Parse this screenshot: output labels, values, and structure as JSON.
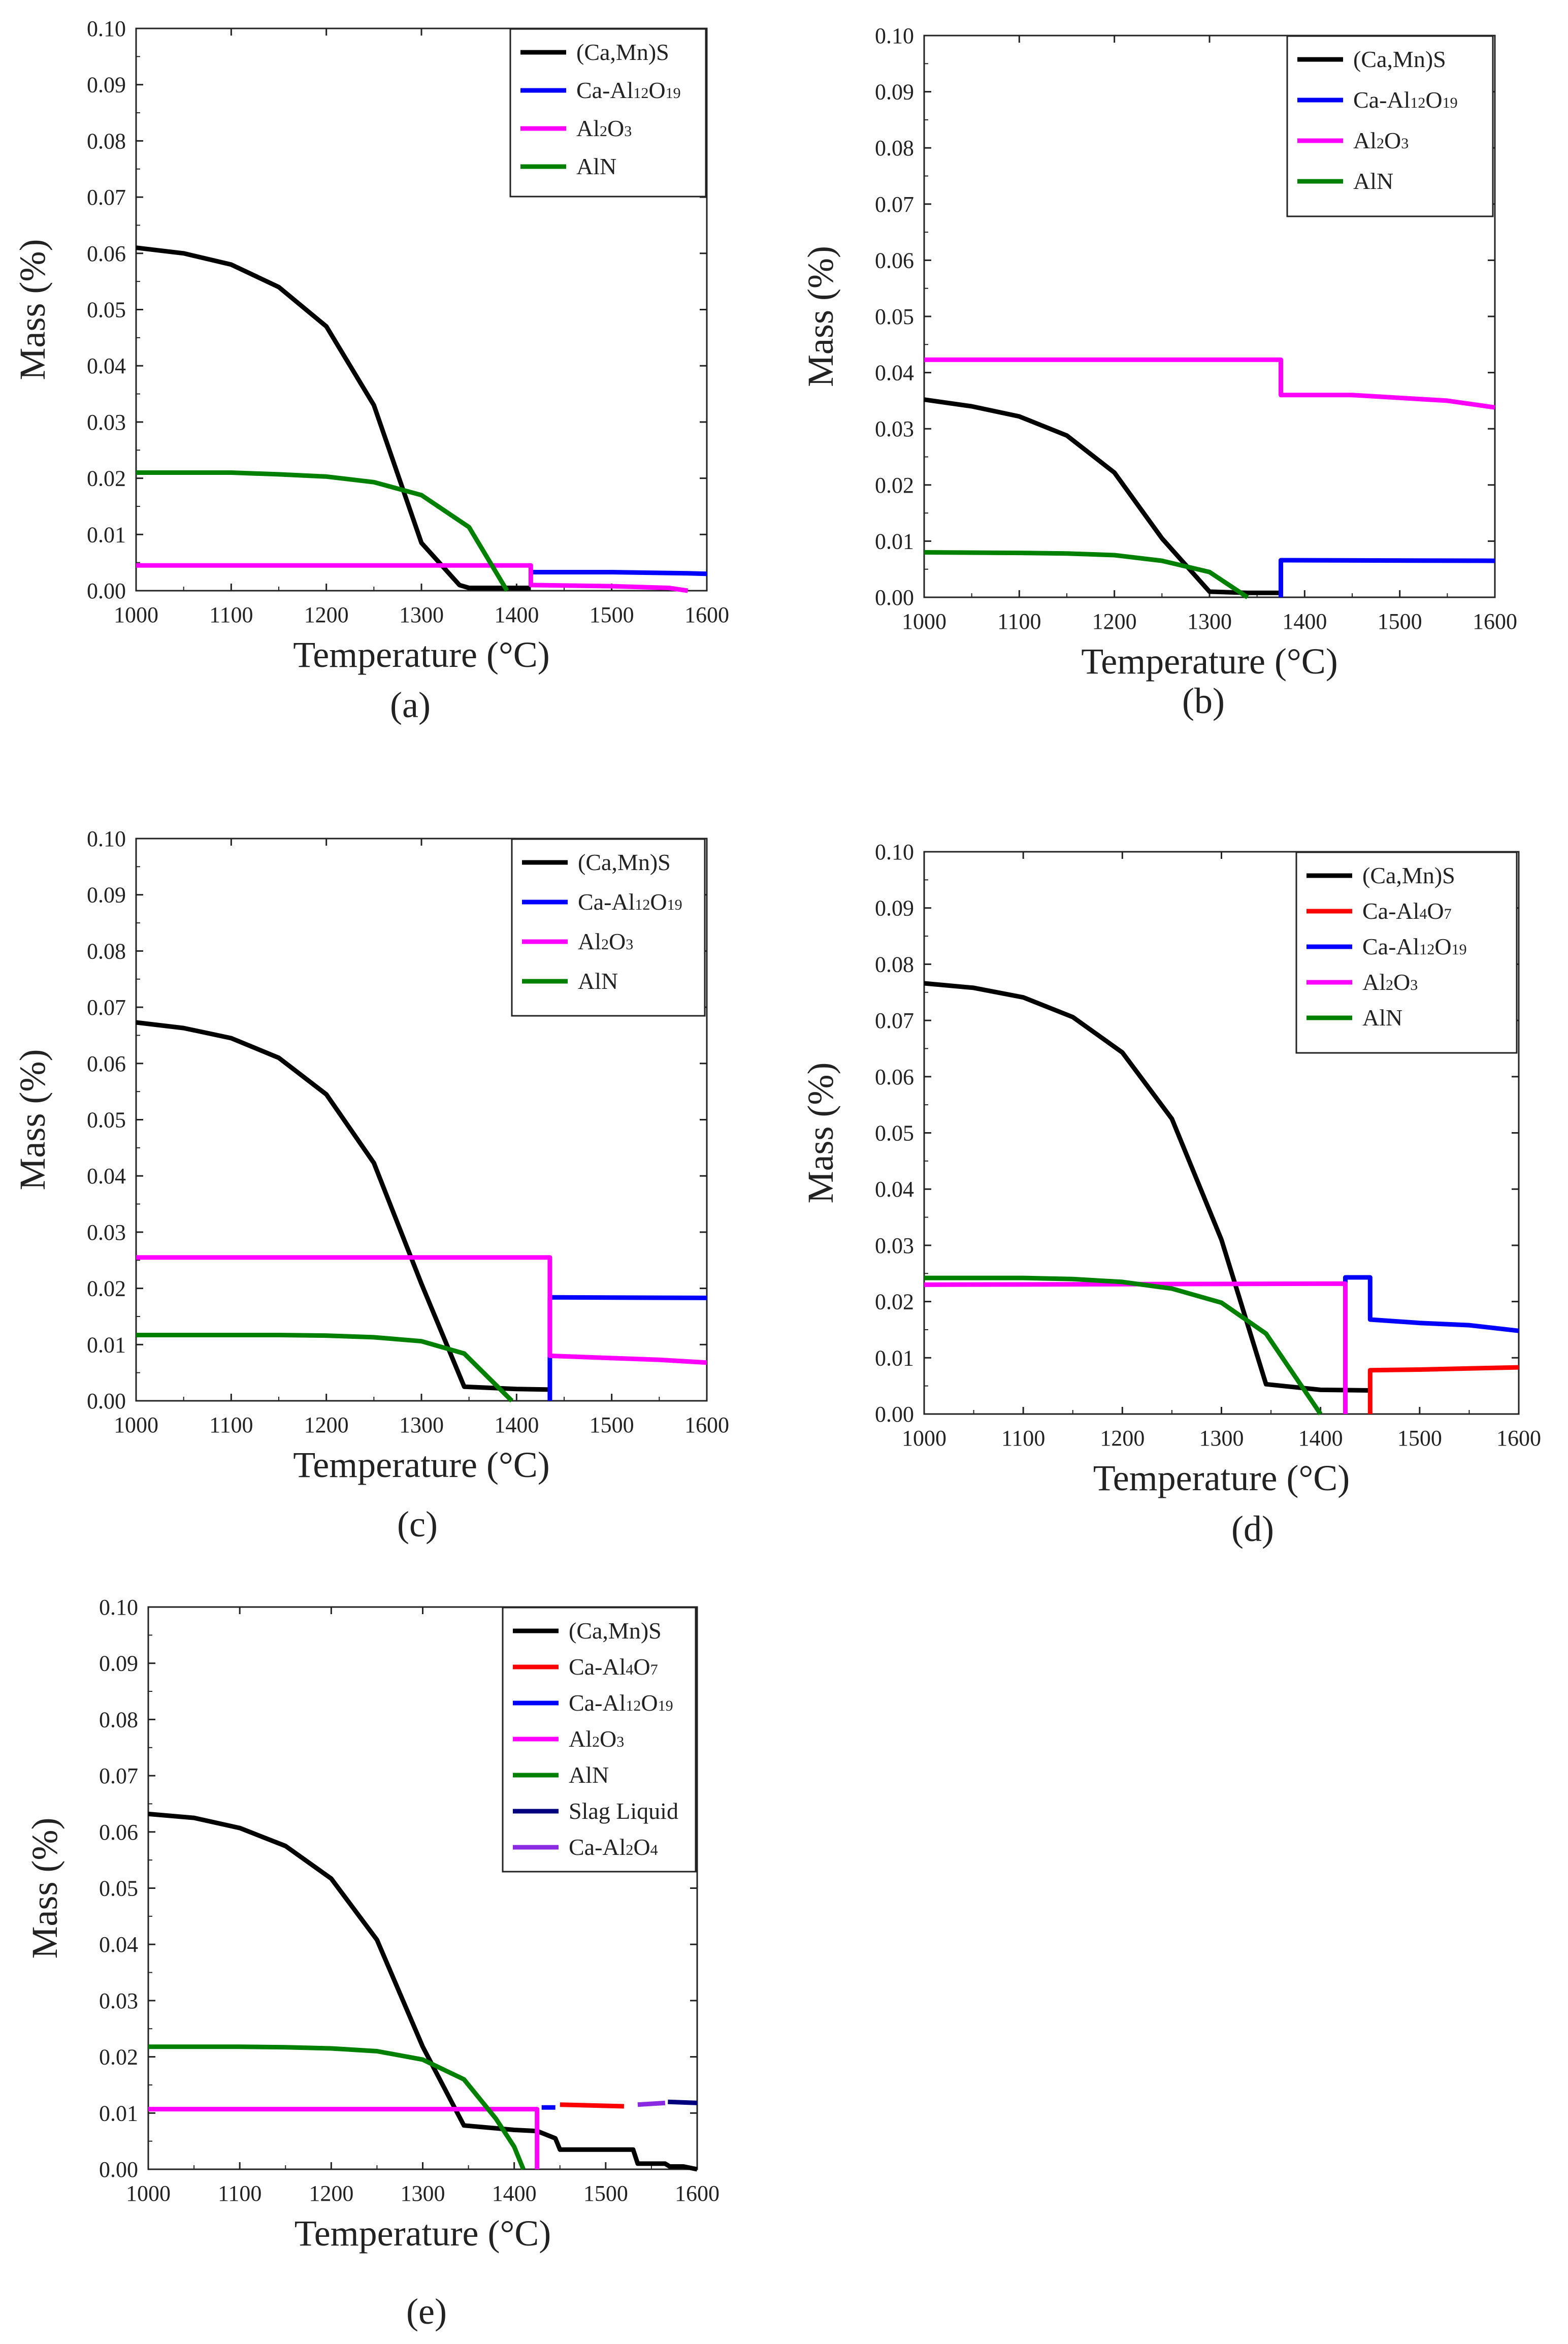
{
  "chart_data": [
    {
      "type": "line",
      "panel_label": "(a)",
      "xlabel": "Temperature (°C)",
      "ylabel": "Mass (%)",
      "xlim": [
        1000,
        1600
      ],
      "ylim": [
        0,
        0.1
      ],
      "x_ticks": [
        "1000",
        "1100",
        "1200",
        "1300",
        "1400",
        "1500",
        "1600"
      ],
      "y_ticks": [
        "0.00",
        "0.01",
        "0.02",
        "0.03",
        "0.04",
        "0.05",
        "0.06",
        "0.07",
        "0.08",
        "0.09",
        "0.10"
      ],
      "legend": [
        "(Ca,Mn)S",
        "Ca-Al12O19",
        "Al2O3",
        "AlN"
      ],
      "series": [
        {
          "name": "(Ca,Mn)S",
          "color": "#000000",
          "points": [
            [
              1000,
              0.061
            ],
            [
              1050,
              0.06
            ],
            [
              1100,
              0.058
            ],
            [
              1150,
              0.054
            ],
            [
              1200,
              0.047
            ],
            [
              1250,
              0.033
            ],
            [
              1300,
              0.0085
            ],
            [
              1340,
              0.001
            ],
            [
              1350,
              0.0005
            ],
            [
              1415,
              0.0005
            ]
          ]
        },
        {
          "name": "Ca-Al12O19",
          "color": "#0000ff",
          "points": [
            [
              1415,
              0.0033
            ],
            [
              1500,
              0.0033
            ],
            [
              1580,
              0.0031
            ],
            [
              1600,
              0.003
            ]
          ]
        },
        {
          "name": "Al2O3",
          "color": "#ff00ff",
          "points": [
            [
              1000,
              0.0045
            ],
            [
              1415,
              0.0045
            ],
            [
              1415,
              0.001
            ],
            [
              1500,
              0.0008
            ],
            [
              1560,
              0.0005
            ],
            [
              1580,
              0.0
            ]
          ]
        },
        {
          "name": "AlN",
          "color": "#008000",
          "points": [
            [
              1000,
              0.021
            ],
            [
              1100,
              0.021
            ],
            [
              1150,
              0.0207
            ],
            [
              1200,
              0.0203
            ],
            [
              1250,
              0.0193
            ],
            [
              1300,
              0.017
            ],
            [
              1350,
              0.0113
            ],
            [
              1390,
              0.0
            ]
          ]
        }
      ]
    },
    {
      "type": "line",
      "panel_label": "(b)",
      "xlabel": "Temperature (°C)",
      "ylabel": "Mass (%)",
      "xlim": [
        1000,
        1600
      ],
      "ylim": [
        0,
        0.1
      ],
      "x_ticks": [
        "1000",
        "1100",
        "1200",
        "1300",
        "1400",
        "1500",
        "1600"
      ],
      "y_ticks": [
        "0.00",
        "0.01",
        "0.02",
        "0.03",
        "0.04",
        "0.05",
        "0.06",
        "0.07",
        "0.08",
        "0.09",
        "0.10"
      ],
      "legend": [
        "(Ca,Mn)S",
        "Ca-Al12O19",
        "Al2O3",
        "AlN"
      ],
      "series": [
        {
          "name": "(Ca,Mn)S",
          "color": "#000000",
          "points": [
            [
              1000,
              0.0352
            ],
            [
              1050,
              0.034
            ],
            [
              1100,
              0.0322
            ],
            [
              1150,
              0.0288
            ],
            [
              1200,
              0.0222
            ],
            [
              1250,
              0.0105
            ],
            [
              1300,
              0.001
            ],
            [
              1340,
              0.0008
            ],
            [
              1375,
              0.0008
            ]
          ]
        },
        {
          "name": "Ca-Al12O19",
          "color": "#0000ff",
          "points": [
            [
              1375,
              0.0
            ],
            [
              1375,
              0.0066
            ],
            [
              1600,
              0.0065
            ]
          ]
        },
        {
          "name": "Al2O3",
          "color": "#ff00ff",
          "points": [
            [
              1000,
              0.0423
            ],
            [
              1375,
              0.0423
            ],
            [
              1375,
              0.036
            ],
            [
              1450,
              0.036
            ],
            [
              1550,
              0.035
            ],
            [
              1600,
              0.0338
            ]
          ]
        },
        {
          "name": "AlN",
          "color": "#008000",
          "points": [
            [
              1000,
              0.008
            ],
            [
              1100,
              0.0079
            ],
            [
              1150,
              0.0078
            ],
            [
              1200,
              0.0075
            ],
            [
              1250,
              0.0065
            ],
            [
              1280,
              0.0053
            ],
            [
              1300,
              0.0045
            ],
            [
              1340,
              0.0
            ]
          ]
        }
      ]
    },
    {
      "type": "line",
      "panel_label": "(c)",
      "xlabel": "Temperature (°C)",
      "ylabel": "Mass (%)",
      "xlim": [
        1000,
        1600
      ],
      "ylim": [
        0,
        0.1
      ],
      "x_ticks": [
        "1000",
        "1100",
        "1200",
        "1300",
        "1400",
        "1500",
        "1600"
      ],
      "y_ticks": [
        "0.00",
        "0.01",
        "0.02",
        "0.03",
        "0.04",
        "0.05",
        "0.06",
        "0.07",
        "0.08",
        "0.09",
        "0.10"
      ],
      "legend": [
        "(Ca,Mn)S",
        "Ca-Al12O19",
        "Al2O3",
        "AlN"
      ],
      "series": [
        {
          "name": "(Ca,Mn)S",
          "color": "#000000",
          "points": [
            [
              1000,
              0.0673
            ],
            [
              1050,
              0.0663
            ],
            [
              1100,
              0.0645
            ],
            [
              1150,
              0.061
            ],
            [
              1200,
              0.0545
            ],
            [
              1250,
              0.0423
            ],
            [
              1300,
              0.0208
            ],
            [
              1345,
              0.0025
            ],
            [
              1400,
              0.0021
            ],
            [
              1435,
              0.002
            ]
          ]
        },
        {
          "name": "Ca-Al12O19",
          "color": "#0000ff",
          "points": [
            [
              1435,
              0.0
            ],
            [
              1435,
              0.0184
            ],
            [
              1600,
              0.0183
            ]
          ]
        },
        {
          "name": "Al2O3",
          "color": "#ff00ff",
          "points": [
            [
              1000,
              0.0255
            ],
            [
              1435,
              0.0255
            ],
            [
              1435,
              0.008
            ],
            [
              1500,
              0.0076
            ],
            [
              1550,
              0.0073
            ],
            [
              1600,
              0.0068
            ]
          ]
        },
        {
          "name": "AlN",
          "color": "#008000",
          "points": [
            [
              1000,
              0.0117
            ],
            [
              1100,
              0.0117
            ],
            [
              1150,
              0.0117
            ],
            [
              1200,
              0.0116
            ],
            [
              1250,
              0.0113
            ],
            [
              1300,
              0.0106
            ],
            [
              1345,
              0.0084
            ],
            [
              1395,
              0.0
            ]
          ]
        }
      ]
    },
    {
      "type": "line",
      "panel_label": "(d)",
      "xlabel": "Temperature (°C)",
      "ylabel": "Mass (%)",
      "xlim": [
        1000,
        1600
      ],
      "ylim": [
        0,
        0.1
      ],
      "x_ticks": [
        "1000",
        "1100",
        "1200",
        "1300",
        "1400",
        "1500",
        "1600"
      ],
      "y_ticks": [
        "0.00",
        "0.01",
        "0.02",
        "0.03",
        "0.04",
        "0.05",
        "0.06",
        "0.07",
        "0.08",
        "0.09",
        "0.10"
      ],
      "legend": [
        "(Ca,Mn)S",
        "Ca-Al4O7",
        "Ca-Al12O19",
        "Al2O3",
        "AlN"
      ],
      "series": [
        {
          "name": "(Ca,Mn)S",
          "color": "#000000",
          "points": [
            [
              1000,
              0.0766
            ],
            [
              1050,
              0.0758
            ],
            [
              1100,
              0.0741
            ],
            [
              1150,
              0.0706
            ],
            [
              1200,
              0.0643
            ],
            [
              1250,
              0.0525
            ],
            [
              1300,
              0.031
            ],
            [
              1345,
              0.0053
            ],
            [
              1400,
              0.0043
            ],
            [
              1450,
              0.0042
            ]
          ]
        },
        {
          "name": "Ca-Al4O7",
          "color": "#ff0000",
          "points": [
            [
              1450,
              0.0
            ],
            [
              1450,
              0.0078
            ],
            [
              1500,
              0.0079
            ],
            [
              1550,
              0.0081
            ],
            [
              1600,
              0.0083
            ]
          ]
        },
        {
          "name": "Ca-Al12O19",
          "color": "#0000ff",
          "points": [
            [
              1425,
              0.0
            ],
            [
              1425,
              0.0243
            ],
            [
              1450,
              0.0243
            ],
            [
              1450,
              0.0168
            ],
            [
              1500,
              0.0162
            ],
            [
              1550,
              0.0158
            ],
            [
              1600,
              0.0148
            ]
          ]
        },
        {
          "name": "Al2O3",
          "color": "#ff00ff",
          "points": [
            [
              1000,
              0.023
            ],
            [
              1425,
              0.0232
            ],
            [
              1425,
              0.0
            ]
          ]
        },
        {
          "name": "AlN",
          "color": "#008000",
          "points": [
            [
              1000,
              0.0242
            ],
            [
              1100,
              0.0242
            ],
            [
              1150,
              0.024
            ],
            [
              1200,
              0.0235
            ],
            [
              1250,
              0.0223
            ],
            [
              1300,
              0.0198
            ],
            [
              1345,
              0.0143
            ],
            [
              1400,
              0.0
            ]
          ]
        }
      ]
    },
    {
      "type": "line",
      "panel_label": "(e)",
      "xlabel": "Temperature (°C)",
      "ylabel": "Mass (%)",
      "xlim": [
        1000,
        1600
      ],
      "ylim": [
        0,
        0.1
      ],
      "x_ticks": [
        "1000",
        "1100",
        "1200",
        "1300",
        "1400",
        "1500",
        "1600"
      ],
      "y_ticks": [
        "0.00",
        "0.01",
        "0.02",
        "0.03",
        "0.04",
        "0.05",
        "0.06",
        "0.07",
        "0.08",
        "0.09",
        "0.10"
      ],
      "legend": [
        "(Ca,Mn)S",
        "Ca-Al4O7",
        "Ca-Al12O19",
        "Al2O3",
        "AlN",
        "Slag Liquid",
        "Ca-Al2O4"
      ],
      "series": [
        {
          "name": "(Ca,Mn)S",
          "color": "#000000",
          "points": [
            [
              1000,
              0.0632
            ],
            [
              1050,
              0.0625
            ],
            [
              1100,
              0.0607
            ],
            [
              1150,
              0.0575
            ],
            [
              1200,
              0.0517
            ],
            [
              1250,
              0.0408
            ],
            [
              1300,
              0.0218
            ],
            [
              1345,
              0.0078
            ],
            [
              1400,
              0.007
            ],
            [
              1425,
              0.0068
            ],
            [
              1445,
              0.0055
            ],
            [
              1450,
              0.0035
            ],
            [
              1530,
              0.0035
            ],
            [
              1535,
              0.001
            ],
            [
              1565,
              0.001
            ],
            [
              1570,
              0.0005
            ],
            [
              1585,
              0.0005
            ],
            [
              1600,
              0.0
            ]
          ]
        },
        {
          "name": "Ca-Al4O7",
          "color": "#ff0000",
          "points": [
            [
              1450,
              0.0115
            ],
            [
              1520,
              0.0112
            ]
          ]
        },
        {
          "name": "Ca-Al12O19",
          "color": "#0000ff",
          "points": [
            [
              1430,
              0.011
            ],
            [
              1445,
              0.011
            ]
          ]
        },
        {
          "name": "Al2O3",
          "color": "#ff00ff",
          "points": [
            [
              1000,
              0.0107
            ],
            [
              1425,
              0.0107
            ],
            [
              1425,
              0.0
            ]
          ]
        },
        {
          "name": "AlN",
          "color": "#008000",
          "points": [
            [
              1000,
              0.0218
            ],
            [
              1100,
              0.0218
            ],
            [
              1150,
              0.0217
            ],
            [
              1200,
              0.0215
            ],
            [
              1250,
              0.021
            ],
            [
              1300,
              0.0195
            ],
            [
              1345,
              0.016
            ],
            [
              1380,
              0.009
            ],
            [
              1400,
              0.004
            ],
            [
              1410,
              0.0
            ]
          ]
        },
        {
          "name": "Slag Liquid",
          "color": "#00007f",
          "points": [
            [
              1568,
              0.012
            ],
            [
              1600,
              0.0118
            ]
          ]
        },
        {
          "name": "Ca-Al2O4",
          "color": "#8a2be2",
          "points": [
            [
              1535,
              0.0115
            ],
            [
              1565,
              0.0118
            ]
          ]
        }
      ]
    }
  ]
}
